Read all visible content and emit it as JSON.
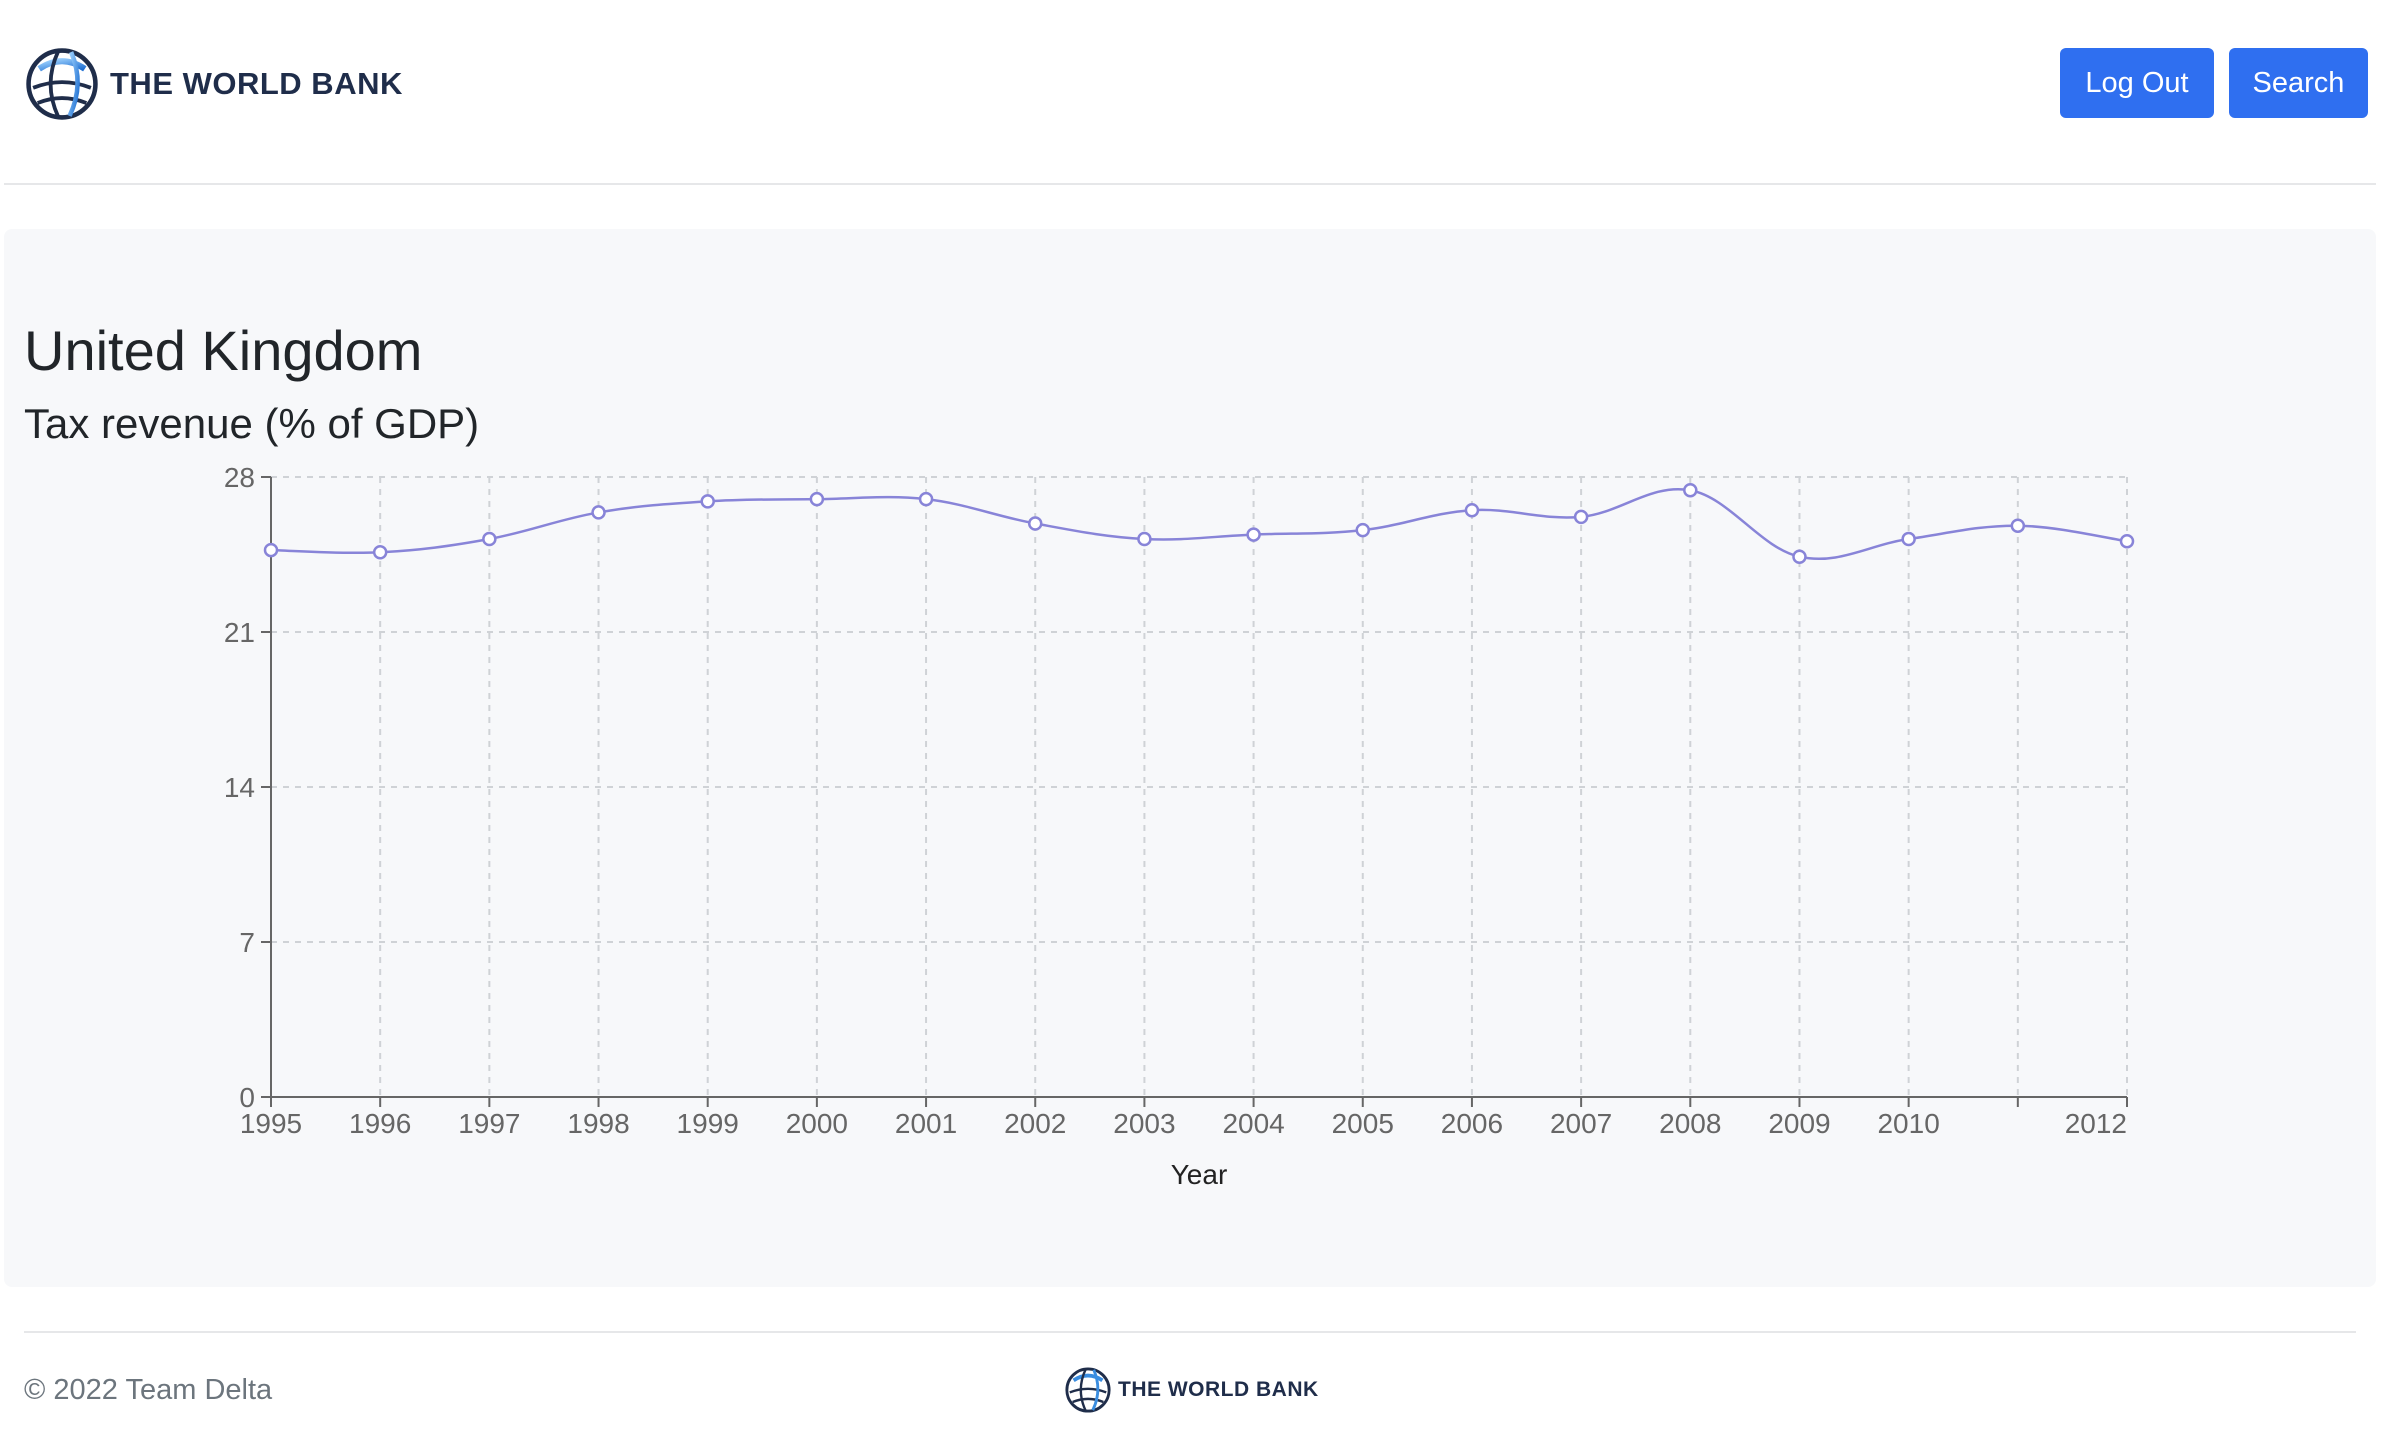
{
  "header": {
    "logo_text": "THE WORLD BANK",
    "logout_label": "Log Out",
    "search_label": "Search"
  },
  "main": {
    "country": "United Kingdom",
    "indicator": "Tax revenue (% of GDP)"
  },
  "chart_data": {
    "type": "line",
    "title": "",
    "xlabel": "Year",
    "ylabel": "",
    "x": [
      1995,
      1996,
      1997,
      1998,
      1999,
      2000,
      2001,
      2002,
      2003,
      2004,
      2005,
      2006,
      2007,
      2008,
      2009,
      2010,
      2011,
      2012
    ],
    "x_tick_labels": [
      "1995",
      "1996",
      "1997",
      "1998",
      "1999",
      "2000",
      "2001",
      "2002",
      "2003",
      "2004",
      "2005",
      "2006",
      "2007",
      "2008",
      "2009",
      "2010",
      "",
      "2012"
    ],
    "series": [
      {
        "values": [
          24.7,
          24.6,
          25.2,
          26.4,
          26.9,
          27.0,
          27.0,
          25.9,
          25.2,
          25.4,
          25.6,
          26.5,
          26.2,
          27.4,
          24.4,
          25.2,
          25.8,
          25.1
        ],
        "color": "#8884d8"
      }
    ],
    "ylim": [
      0,
      28
    ],
    "y_ticks": [
      0,
      7,
      14,
      21,
      28
    ],
    "grid": true,
    "grid_style": "dashed"
  },
  "footer": {
    "copyright": "© 2022 Team Delta",
    "logo_text": "THE WORLD BANK"
  },
  "colors": {
    "primary": "#2f6ff0",
    "panel_bg": "#f7f8fa",
    "line": "#8884d8",
    "logo_text": "#1f2d4a"
  }
}
